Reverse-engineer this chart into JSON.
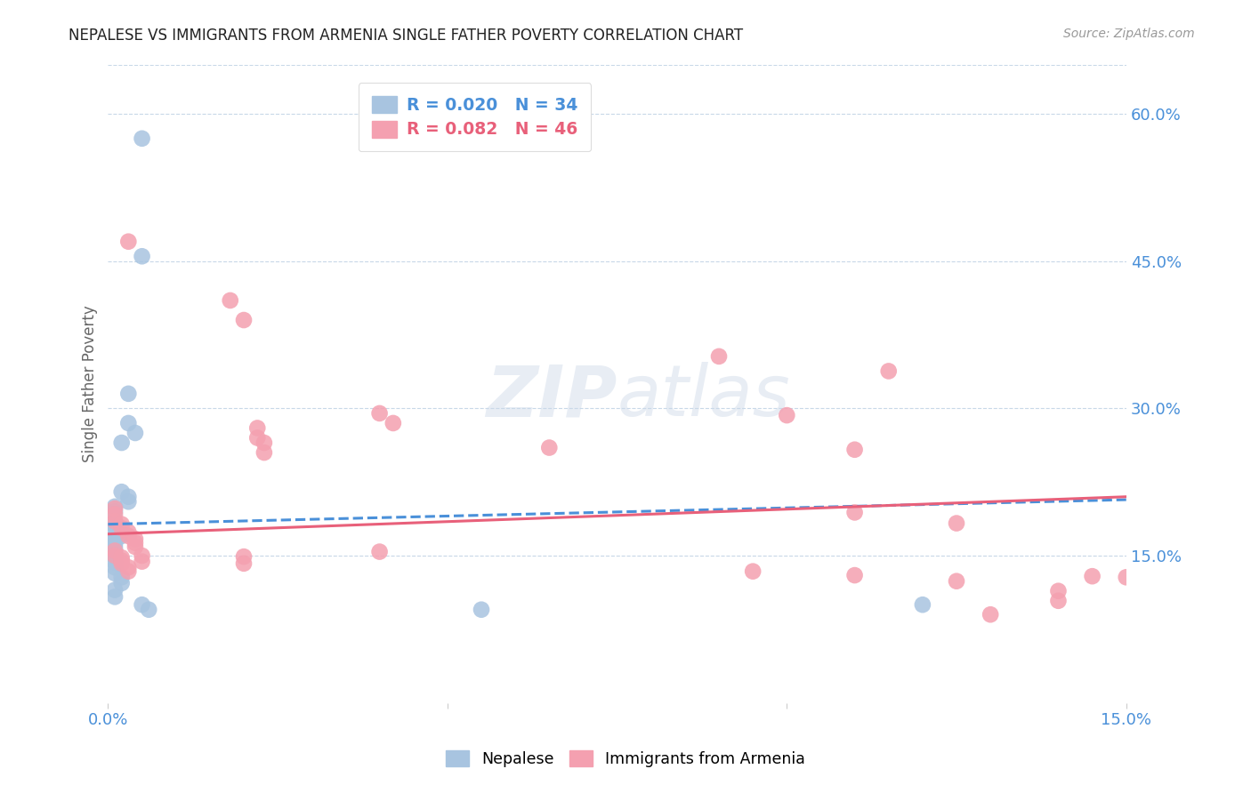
{
  "title": "NEPALESE VS IMMIGRANTS FROM ARMENIA SINGLE FATHER POVERTY CORRELATION CHART",
  "source": "Source: ZipAtlas.com",
  "ylabel": "Single Father Poverty",
  "xlim": [
    0,
    0.15
  ],
  "ylim": [
    0,
    0.65
  ],
  "nepalese_color": "#a8c4e0",
  "armenia_color": "#f4a0b0",
  "nepalese_line_color": "#4a90d9",
  "armenia_line_color": "#e8607a",
  "watermark": "ZIPatlas",
  "nepalese_points": [
    [
      0.005,
      0.575
    ],
    [
      0.005,
      0.455
    ],
    [
      0.003,
      0.315
    ],
    [
      0.003,
      0.285
    ],
    [
      0.004,
      0.275
    ],
    [
      0.002,
      0.265
    ],
    [
      0.002,
      0.215
    ],
    [
      0.003,
      0.21
    ],
    [
      0.003,
      0.205
    ],
    [
      0.001,
      0.2
    ],
    [
      0.001,
      0.195
    ],
    [
      0.001,
      0.185
    ],
    [
      0.001,
      0.18
    ],
    [
      0.001,
      0.175
    ],
    [
      0.002,
      0.172
    ],
    [
      0.002,
      0.17
    ],
    [
      0.001,
      0.168
    ],
    [
      0.001,
      0.165
    ],
    [
      0.001,
      0.162
    ],
    [
      0.001,
      0.158
    ],
    [
      0.001,
      0.155
    ],
    [
      0.001,
      0.152
    ],
    [
      0.001,
      0.148
    ],
    [
      0.001,
      0.143
    ],
    [
      0.001,
      0.138
    ],
    [
      0.001,
      0.132
    ],
    [
      0.002,
      0.128
    ],
    [
      0.002,
      0.122
    ],
    [
      0.001,
      0.115
    ],
    [
      0.001,
      0.108
    ],
    [
      0.005,
      0.1
    ],
    [
      0.006,
      0.095
    ],
    [
      0.055,
      0.095
    ],
    [
      0.12,
      0.1
    ]
  ],
  "armenia_points": [
    [
      0.003,
      0.47
    ],
    [
      0.018,
      0.41
    ],
    [
      0.02,
      0.39
    ],
    [
      0.022,
      0.28
    ],
    [
      0.022,
      0.27
    ],
    [
      0.023,
      0.265
    ],
    [
      0.023,
      0.255
    ],
    [
      0.04,
      0.295
    ],
    [
      0.042,
      0.285
    ],
    [
      0.001,
      0.198
    ],
    [
      0.001,
      0.192
    ],
    [
      0.001,
      0.185
    ],
    [
      0.002,
      0.182
    ],
    [
      0.002,
      0.178
    ],
    [
      0.003,
      0.174
    ],
    [
      0.003,
      0.17
    ],
    [
      0.004,
      0.167
    ],
    [
      0.004,
      0.163
    ],
    [
      0.004,
      0.159
    ],
    [
      0.001,
      0.155
    ],
    [
      0.001,
      0.15
    ],
    [
      0.002,
      0.148
    ],
    [
      0.002,
      0.145
    ],
    [
      0.002,
      0.142
    ],
    [
      0.003,
      0.138
    ],
    [
      0.003,
      0.134
    ],
    [
      0.005,
      0.15
    ],
    [
      0.005,
      0.144
    ],
    [
      0.02,
      0.149
    ],
    [
      0.02,
      0.142
    ],
    [
      0.04,
      0.154
    ],
    [
      0.065,
      0.26
    ],
    [
      0.1,
      0.293
    ],
    [
      0.09,
      0.353
    ],
    [
      0.095,
      0.134
    ],
    [
      0.11,
      0.258
    ],
    [
      0.11,
      0.194
    ],
    [
      0.11,
      0.13
    ],
    [
      0.115,
      0.338
    ],
    [
      0.125,
      0.183
    ],
    [
      0.125,
      0.124
    ],
    [
      0.13,
      0.09
    ],
    [
      0.14,
      0.114
    ],
    [
      0.14,
      0.104
    ],
    [
      0.145,
      0.129
    ],
    [
      0.15,
      0.128
    ]
  ],
  "nep_trend_x": [
    0.0,
    0.15
  ],
  "nep_trend_y": [
    0.182,
    0.207
  ],
  "arm_trend_x": [
    0.0,
    0.15
  ],
  "arm_trend_y": [
    0.172,
    0.21
  ]
}
